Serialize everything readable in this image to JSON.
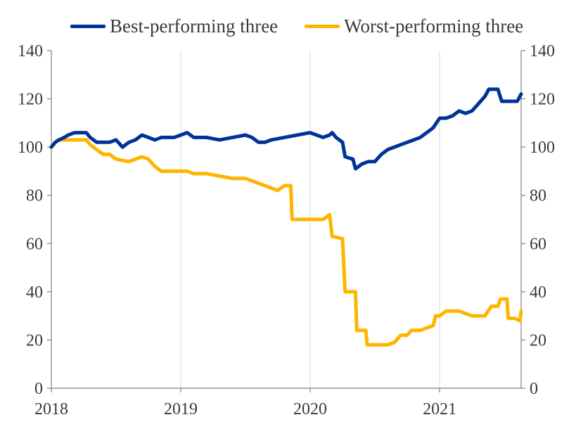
{
  "chart_data": {
    "type": "line",
    "title": "",
    "xlabel": "",
    "ylabel": "",
    "x_unit": "decimal year",
    "xlim": [
      2018.0,
      2021.63
    ],
    "ylim": [
      0,
      140
    ],
    "x_ticks": [
      2018,
      2019,
      2020,
      2021
    ],
    "x_tick_labels": [
      "2018",
      "2019",
      "2020",
      "2021"
    ],
    "y_ticks": [
      0,
      20,
      40,
      60,
      80,
      100,
      120,
      140
    ],
    "y_tick_labels": [
      "0",
      "20",
      "40",
      "60",
      "80",
      "100",
      "120",
      "140"
    ],
    "right_axis_mirrors_left": true,
    "grid": "vertical",
    "legend_position": "top",
    "series": [
      {
        "name": "Best-performing three",
        "color": "#003399",
        "points": [
          [
            2018.0,
            100
          ],
          [
            2018.03,
            102
          ],
          [
            2018.06,
            103
          ],
          [
            2018.1,
            104
          ],
          [
            2018.13,
            105
          ],
          [
            2018.18,
            106
          ],
          [
            2018.22,
            106
          ],
          [
            2018.27,
            106
          ],
          [
            2018.3,
            104
          ],
          [
            2018.35,
            102
          ],
          [
            2018.4,
            102
          ],
          [
            2018.45,
            102
          ],
          [
            2018.5,
            103
          ],
          [
            2018.55,
            100
          ],
          [
            2018.6,
            102
          ],
          [
            2018.65,
            103
          ],
          [
            2018.7,
            105
          ],
          [
            2018.75,
            104
          ],
          [
            2018.8,
            103
          ],
          [
            2018.85,
            104
          ],
          [
            2018.9,
            104
          ],
          [
            2018.95,
            104
          ],
          [
            2019.0,
            105
          ],
          [
            2019.05,
            106
          ],
          [
            2019.1,
            104
          ],
          [
            2019.2,
            104
          ],
          [
            2019.3,
            103
          ],
          [
            2019.4,
            104
          ],
          [
            2019.5,
            105
          ],
          [
            2019.55,
            104
          ],
          [
            2019.6,
            102
          ],
          [
            2019.65,
            102
          ],
          [
            2019.7,
            103
          ],
          [
            2019.8,
            104
          ],
          [
            2019.9,
            105
          ],
          [
            2020.0,
            106
          ],
          [
            2020.05,
            105
          ],
          [
            2020.1,
            104
          ],
          [
            2020.15,
            105
          ],
          [
            2020.17,
            106
          ],
          [
            2020.2,
            104
          ],
          [
            2020.25,
            102
          ],
          [
            2020.27,
            96
          ],
          [
            2020.33,
            95
          ],
          [
            2020.35,
            91
          ],
          [
            2020.4,
            93
          ],
          [
            2020.45,
            94
          ],
          [
            2020.5,
            94
          ],
          [
            2020.55,
            97
          ],
          [
            2020.6,
            99
          ],
          [
            2020.7,
            101
          ],
          [
            2020.8,
            103
          ],
          [
            2020.85,
            104
          ],
          [
            2020.9,
            106
          ],
          [
            2020.95,
            108
          ],
          [
            2021.0,
            112
          ],
          [
            2021.05,
            112
          ],
          [
            2021.1,
            113
          ],
          [
            2021.15,
            115
          ],
          [
            2021.2,
            114
          ],
          [
            2021.25,
            115
          ],
          [
            2021.3,
            118
          ],
          [
            2021.35,
            121
          ],
          [
            2021.38,
            124
          ],
          [
            2021.45,
            124
          ],
          [
            2021.48,
            119
          ],
          [
            2021.55,
            119
          ],
          [
            2021.6,
            119
          ],
          [
            2021.63,
            122
          ]
        ]
      },
      {
        "name": "Worst-performing three",
        "color": "#ffb400",
        "points": [
          [
            2018.0,
            100
          ],
          [
            2018.05,
            103
          ],
          [
            2018.1,
            103
          ],
          [
            2018.2,
            103
          ],
          [
            2018.27,
            103
          ],
          [
            2018.3,
            101
          ],
          [
            2018.35,
            99
          ],
          [
            2018.4,
            97
          ],
          [
            2018.45,
            97
          ],
          [
            2018.5,
            95
          ],
          [
            2018.6,
            94
          ],
          [
            2018.7,
            96
          ],
          [
            2018.75,
            95
          ],
          [
            2018.8,
            92
          ],
          [
            2018.85,
            90
          ],
          [
            2018.9,
            90
          ],
          [
            2019.0,
            90
          ],
          [
            2019.05,
            90
          ],
          [
            2019.1,
            89
          ],
          [
            2019.2,
            89
          ],
          [
            2019.3,
            88
          ],
          [
            2019.4,
            87
          ],
          [
            2019.5,
            87
          ],
          [
            2019.55,
            86
          ],
          [
            2019.6,
            85
          ],
          [
            2019.7,
            83
          ],
          [
            2019.75,
            82
          ],
          [
            2019.8,
            84
          ],
          [
            2019.85,
            84
          ],
          [
            2019.86,
            70
          ],
          [
            2019.9,
            70
          ],
          [
            2020.0,
            70
          ],
          [
            2020.1,
            70
          ],
          [
            2020.15,
            72
          ],
          [
            2020.17,
            63
          ],
          [
            2020.25,
            62
          ],
          [
            2020.27,
            40
          ],
          [
            2020.35,
            40
          ],
          [
            2020.36,
            24
          ],
          [
            2020.43,
            24
          ],
          [
            2020.44,
            18
          ],
          [
            2020.5,
            18
          ],
          [
            2020.55,
            18
          ],
          [
            2020.6,
            18
          ],
          [
            2020.65,
            19
          ],
          [
            2020.7,
            22
          ],
          [
            2020.75,
            22
          ],
          [
            2020.78,
            24
          ],
          [
            2020.85,
            24
          ],
          [
            2020.9,
            25
          ],
          [
            2020.95,
            26
          ],
          [
            2020.97,
            30
          ],
          [
            2021.0,
            30
          ],
          [
            2021.05,
            32
          ],
          [
            2021.1,
            32
          ],
          [
            2021.15,
            32
          ],
          [
            2021.2,
            31
          ],
          [
            2021.25,
            30
          ],
          [
            2021.3,
            30
          ],
          [
            2021.35,
            30
          ],
          [
            2021.4,
            34
          ],
          [
            2021.45,
            34
          ],
          [
            2021.47,
            37
          ],
          [
            2021.52,
            37
          ],
          [
            2021.53,
            29
          ],
          [
            2021.58,
            29
          ],
          [
            2021.62,
            28
          ],
          [
            2021.63,
            32
          ]
        ]
      }
    ]
  }
}
